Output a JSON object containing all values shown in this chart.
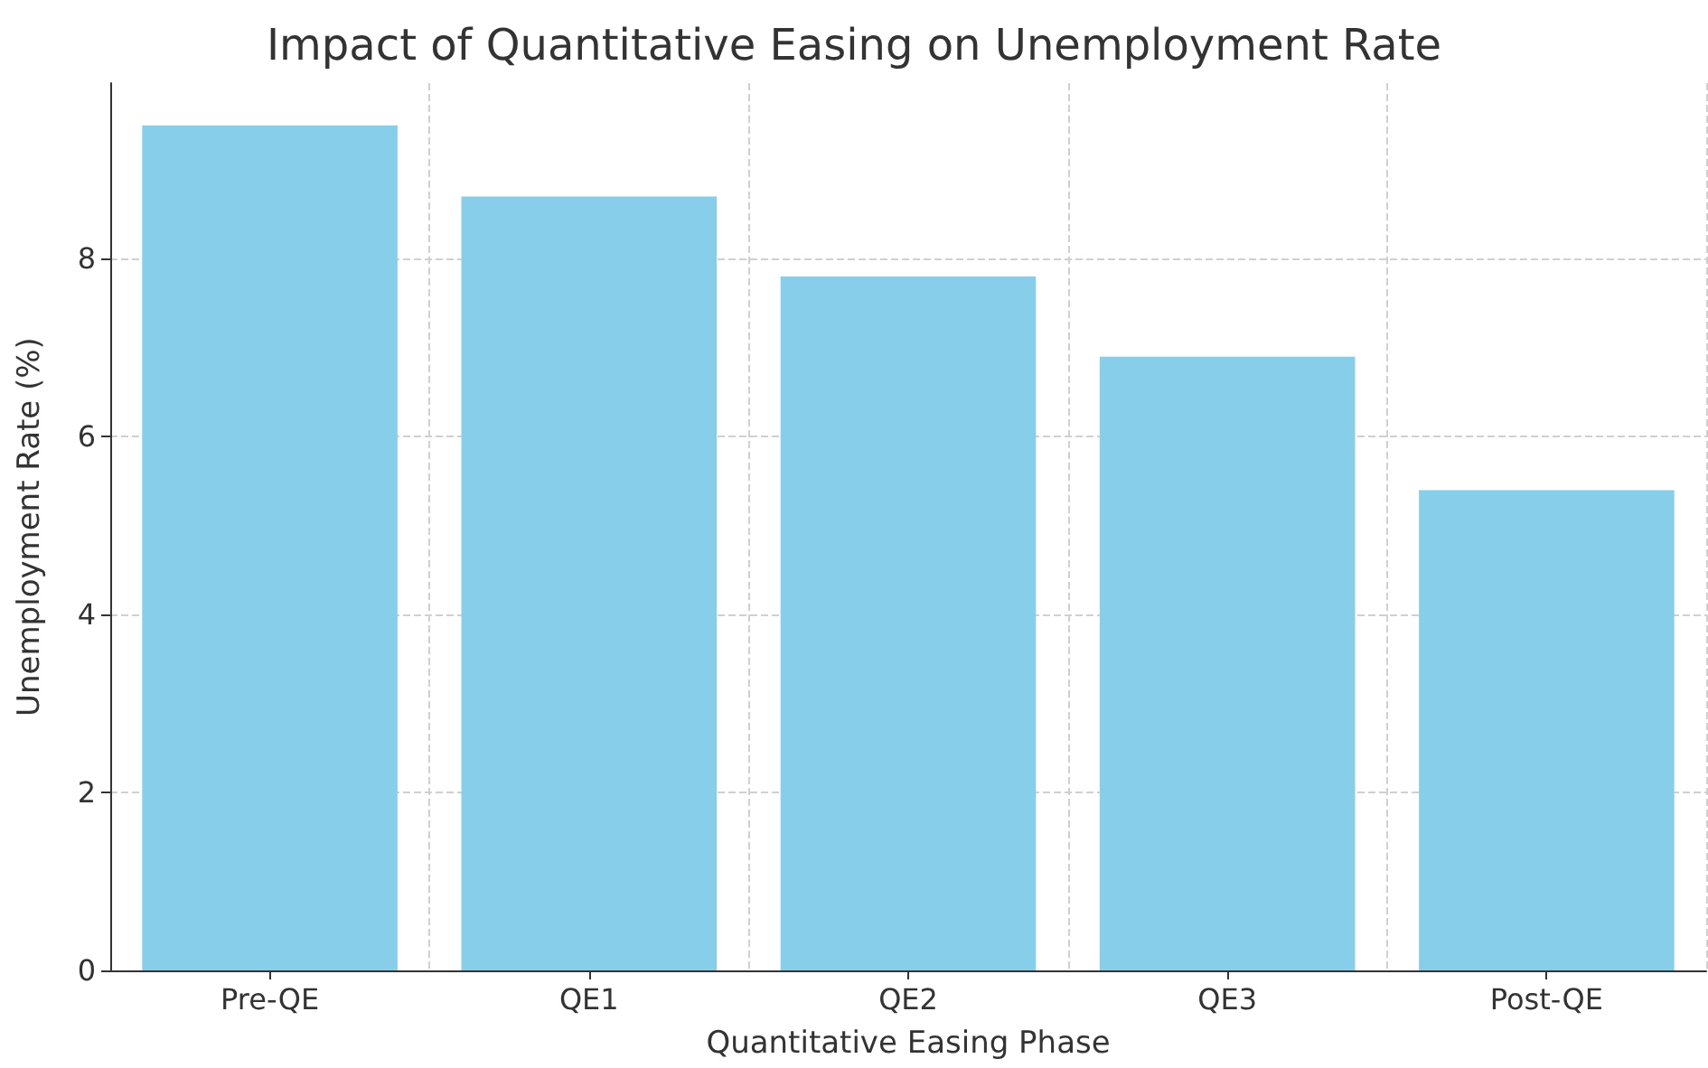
{
  "chart_data": {
    "type": "bar",
    "title": "Impact of Quantitative Easing on Unemployment Rate",
    "xlabel": "Quantitative Easing Phase",
    "ylabel": "Unemployment Rate (%)",
    "categories": [
      "Pre-QE",
      "QE1",
      "QE2",
      "QE3",
      "Post-QE"
    ],
    "values": [
      9.5,
      8.7,
      7.8,
      6.9,
      5.4
    ],
    "color": "#87ceeb",
    "ylim": [
      0,
      9.975
    ],
    "yticks": [
      0,
      2,
      4,
      6,
      8
    ],
    "grid": true
  }
}
